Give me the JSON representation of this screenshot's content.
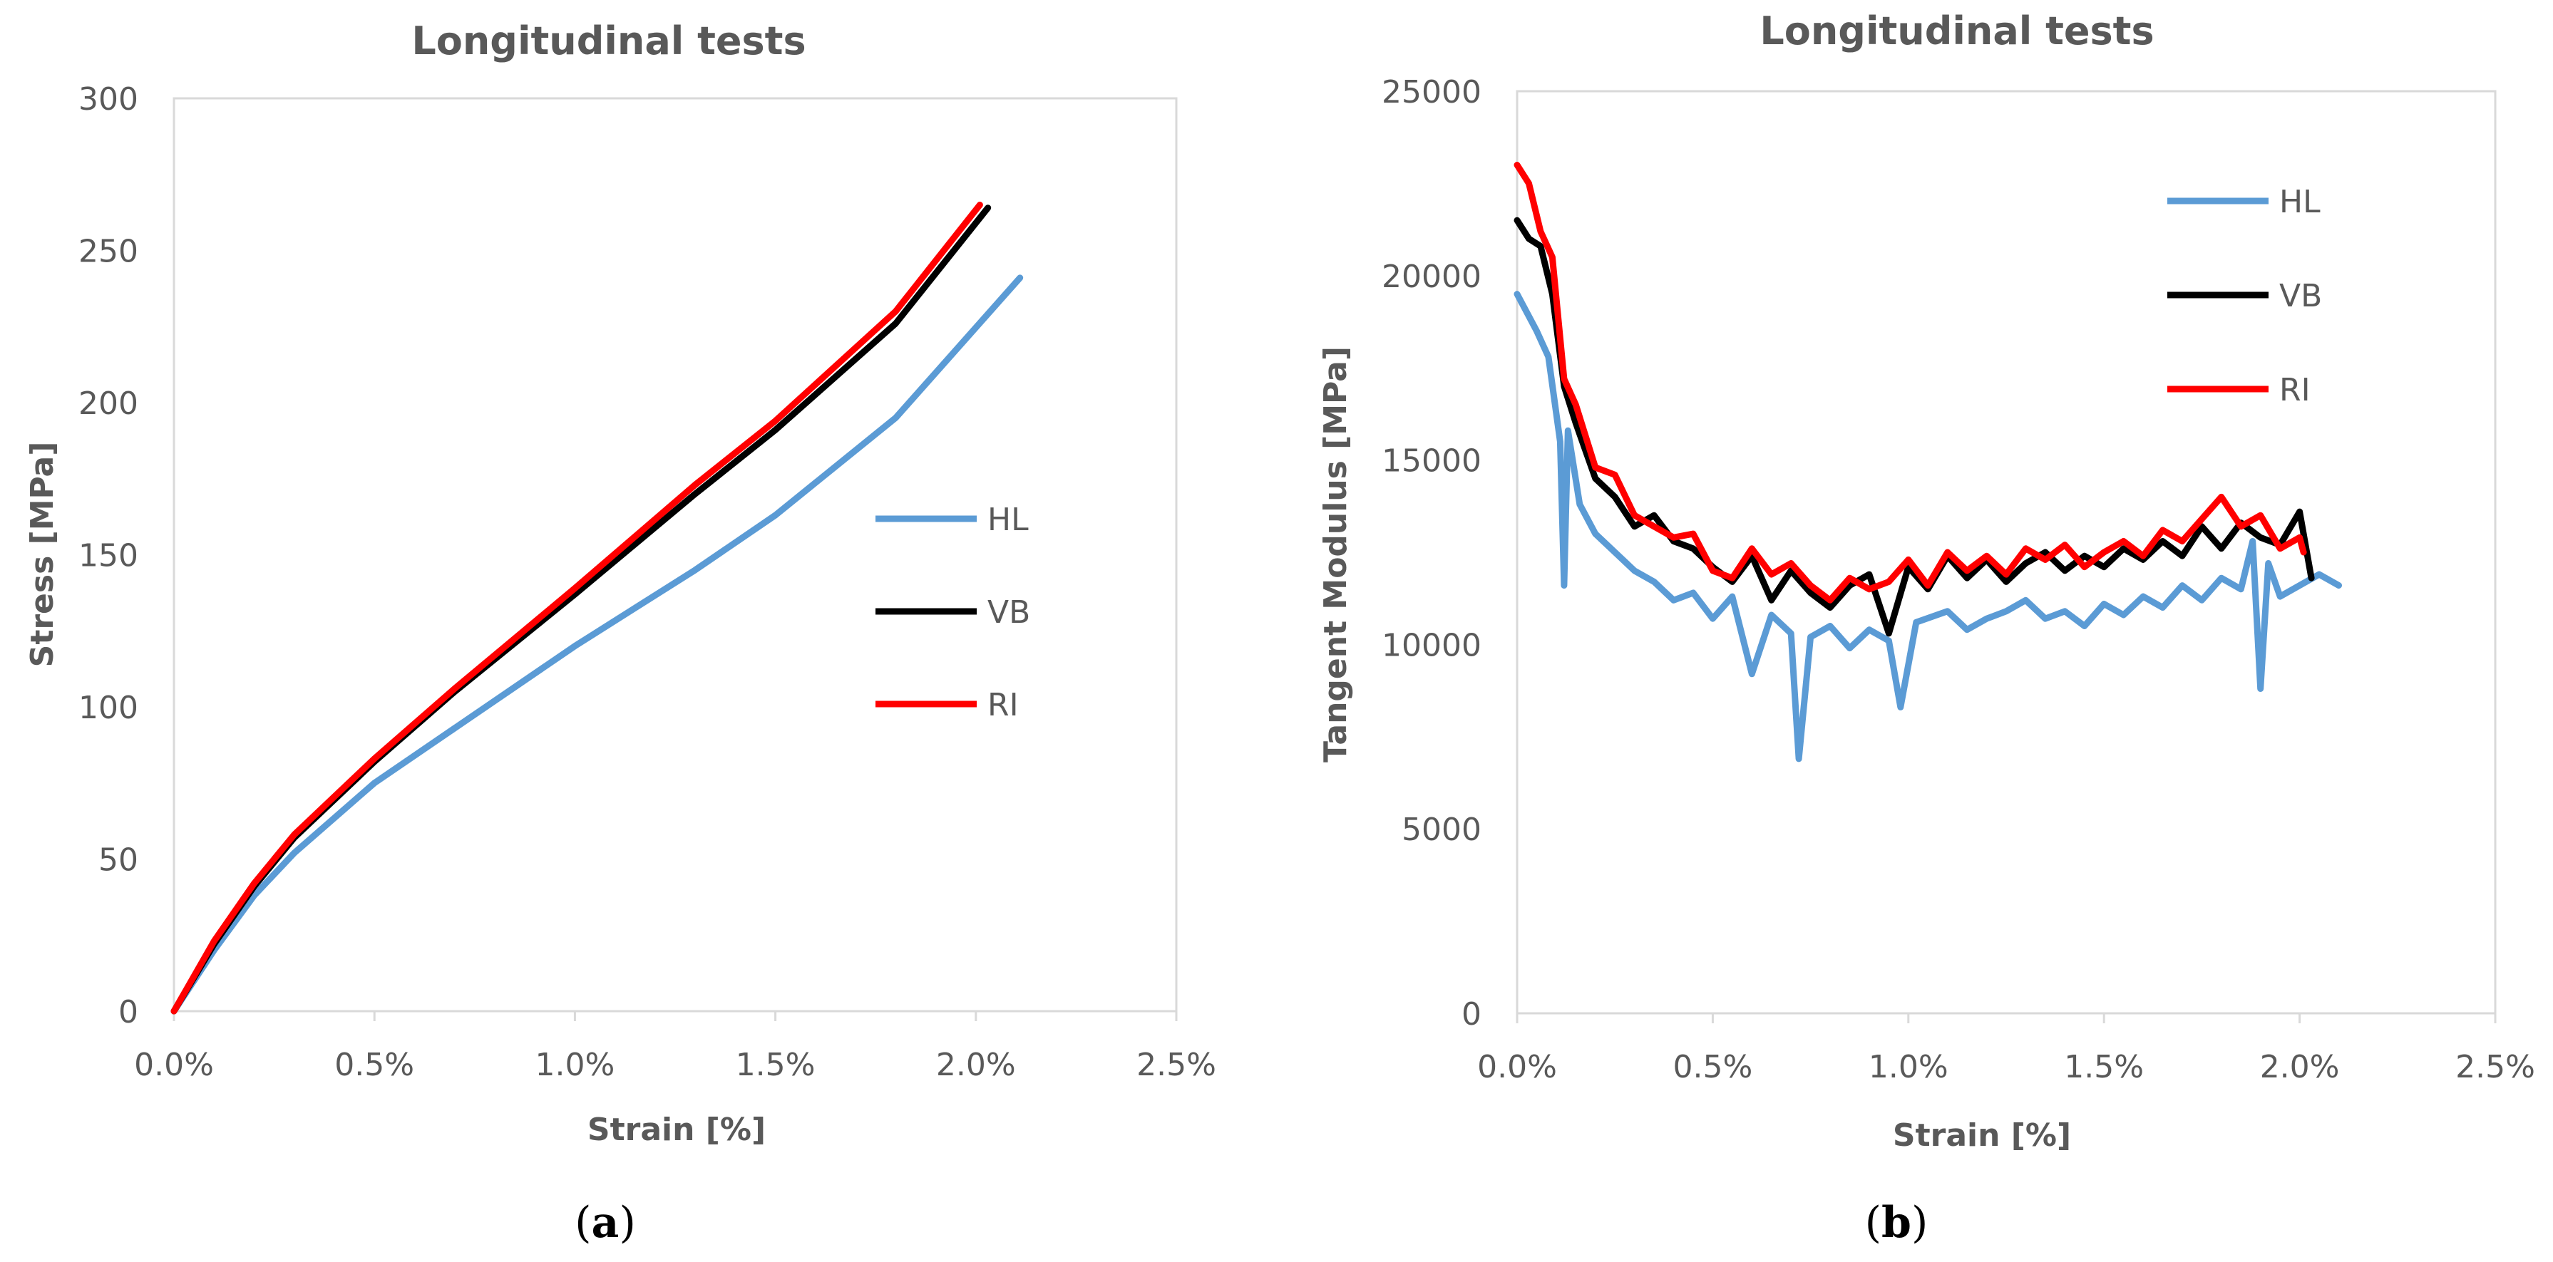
{
  "colors": {
    "HL": "#5b9bd5",
    "VB": "#000000",
    "RI": "#ff0000",
    "text": "#595959",
    "frame": "#d9d9d9"
  },
  "chart_data": [
    {
      "type": "line",
      "caption": "(a)",
      "caption_letter": "a",
      "title": "Longitudinal tests",
      "xlabel": "Strain [%]",
      "ylabel": "Stress [MPa]",
      "xlim": [
        0,
        0.025
      ],
      "ylim": [
        0,
        300
      ],
      "xticks": [
        0,
        0.005,
        0.01,
        0.015,
        0.02,
        0.025
      ],
      "xtick_labels": [
        "0.0%",
        "0.5%",
        "1.0%",
        "1.5%",
        "2.0%",
        "2.5%"
      ],
      "yticks": [
        0,
        50,
        100,
        150,
        200,
        250,
        300
      ],
      "ytick_labels": [
        "0",
        "50",
        "100",
        "150",
        "200",
        "250",
        "300"
      ],
      "legend": [
        "HL",
        "VB",
        "RI"
      ],
      "legend_position": "center-right",
      "series": [
        {
          "name": "HL",
          "x": [
            0,
            0.001,
            0.002,
            0.003,
            0.005,
            0.007,
            0.01,
            0.013,
            0.015,
            0.018,
            0.0211
          ],
          "y": [
            0,
            20,
            38,
            52,
            75,
            93,
            120,
            145,
            163,
            195,
            241
          ]
        },
        {
          "name": "VB",
          "x": [
            0,
            0.001,
            0.002,
            0.003,
            0.005,
            0.007,
            0.01,
            0.013,
            0.015,
            0.018,
            0.0203
          ],
          "y": [
            0,
            22,
            41,
            57,
            82,
            105,
            137,
            170,
            191,
            226,
            264
          ]
        },
        {
          "name": "RI",
          "x": [
            0,
            0.001,
            0.002,
            0.003,
            0.005,
            0.007,
            0.01,
            0.013,
            0.015,
            0.018,
            0.0201
          ],
          "y": [
            0,
            23,
            42,
            58,
            83,
            106,
            139,
            173,
            194,
            230,
            265
          ]
        }
      ]
    },
    {
      "type": "line",
      "caption": "(b)",
      "caption_letter": "b",
      "title": "Longitudinal tests",
      "xlabel": "Strain [%]",
      "ylabel": "Tangent Modulus [MPa]",
      "xlim": [
        0,
        0.025
      ],
      "ylim": [
        0,
        25000
      ],
      "xticks": [
        0,
        0.005,
        0.01,
        0.015,
        0.02,
        0.025
      ],
      "xtick_labels": [
        "0.0%",
        "0.5%",
        "1.0%",
        "1.5%",
        "2.0%",
        "2.5%"
      ],
      "yticks": [
        0,
        5000,
        10000,
        15000,
        20000,
        25000
      ],
      "ytick_labels": [
        "0",
        "5000",
        "10000",
        "15000",
        "20000",
        "25000"
      ],
      "legend": [
        "HL",
        "VB",
        "RI"
      ],
      "legend_position": "top-right",
      "series": [
        {
          "name": "HL",
          "x": [
            0,
            0.0005,
            0.0008,
            0.0011,
            0.0012,
            0.0013,
            0.0016,
            0.002,
            0.0025,
            0.003,
            0.0035,
            0.004,
            0.0045,
            0.005,
            0.0055,
            0.006,
            0.0065,
            0.007,
            0.0072,
            0.0075,
            0.008,
            0.0085,
            0.009,
            0.0095,
            0.0098,
            0.0102,
            0.011,
            0.0115,
            0.012,
            0.0125,
            0.013,
            0.0135,
            0.014,
            0.0145,
            0.015,
            0.0155,
            0.016,
            0.0165,
            0.017,
            0.0175,
            0.018,
            0.0185,
            0.0188,
            0.019,
            0.0192,
            0.0195,
            0.02,
            0.0205,
            0.021
          ],
          "y": [
            19500,
            18500,
            17800,
            15500,
            11600,
            15800,
            13800,
            13000,
            12500,
            12000,
            11700,
            11200,
            11400,
            10700,
            11300,
            9200,
            10800,
            10300,
            6900,
            10200,
            10500,
            9900,
            10400,
            10100,
            8300,
            10600,
            10900,
            10400,
            10700,
            10900,
            11200,
            10700,
            10900,
            10500,
            11100,
            10800,
            11300,
            11000,
            11600,
            11200,
            11800,
            11500,
            12800,
            8800,
            12200,
            11300,
            11600,
            11900,
            11600
          ]
        },
        {
          "name": "VB",
          "x": [
            0,
            0.0003,
            0.0006,
            0.0009,
            0.0012,
            0.0015,
            0.002,
            0.0025,
            0.003,
            0.0035,
            0.004,
            0.0045,
            0.005,
            0.0055,
            0.006,
            0.0065,
            0.007,
            0.0075,
            0.008,
            0.0085,
            0.009,
            0.0095,
            0.01,
            0.0105,
            0.011,
            0.0115,
            0.012,
            0.0125,
            0.013,
            0.0135,
            0.014,
            0.0145,
            0.015,
            0.0155,
            0.016,
            0.0165,
            0.017,
            0.0175,
            0.018,
            0.0185,
            0.019,
            0.0195,
            0.02,
            0.0203
          ],
          "y": [
            21500,
            21000,
            20800,
            19500,
            17000,
            16000,
            14500,
            14000,
            13200,
            13500,
            12800,
            12600,
            12100,
            11700,
            12400,
            11200,
            12000,
            11400,
            11000,
            11600,
            11900,
            10300,
            12100,
            11500,
            12400,
            11800,
            12300,
            11700,
            12200,
            12500,
            12000,
            12400,
            12100,
            12600,
            12300,
            12800,
            12400,
            13200,
            12600,
            13300,
            12900,
            12700,
            13600,
            11800
          ]
        },
        {
          "name": "RI",
          "x": [
            0,
            0.0003,
            0.0006,
            0.0009,
            0.0012,
            0.0015,
            0.002,
            0.0025,
            0.003,
            0.0035,
            0.004,
            0.0045,
            0.005,
            0.0055,
            0.006,
            0.0065,
            0.007,
            0.0075,
            0.008,
            0.0085,
            0.009,
            0.0095,
            0.01,
            0.0105,
            0.011,
            0.0115,
            0.012,
            0.0125,
            0.013,
            0.0135,
            0.014,
            0.0145,
            0.015,
            0.0155,
            0.016,
            0.0165,
            0.017,
            0.0175,
            0.018,
            0.0185,
            0.019,
            0.0195,
            0.02,
            0.0201
          ],
          "y": [
            23000,
            22500,
            21200,
            20500,
            17200,
            16500,
            14800,
            14600,
            13500,
            13200,
            12900,
            13000,
            12000,
            11800,
            12600,
            11900,
            12200,
            11600,
            11200,
            11800,
            11500,
            11700,
            12300,
            11600,
            12500,
            12000,
            12400,
            11900,
            12600,
            12300,
            12700,
            12100,
            12500,
            12800,
            12400,
            13100,
            12800,
            13400,
            14000,
            13200,
            13500,
            12600,
            12900,
            12500
          ]
        }
      ]
    }
  ]
}
